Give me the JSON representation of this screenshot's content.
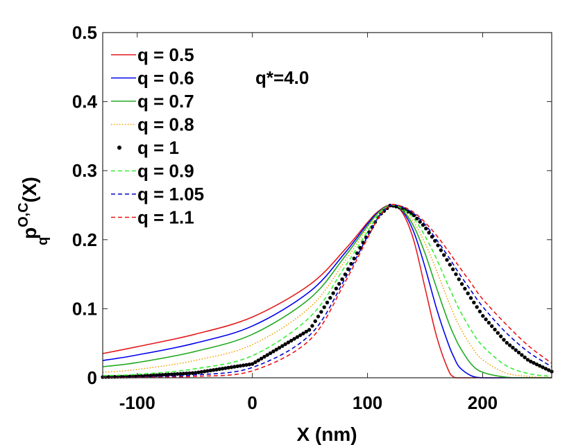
{
  "chart_data": {
    "type": "line",
    "title": "",
    "xlabel": "X (nm)",
    "ylabel": {
      "base": "p",
      "sub": "q",
      "sup": "O,C",
      "arg": "(X)"
    },
    "xlim": [
      -130,
      260
    ],
    "ylim": [
      0,
      0.5
    ],
    "xticks": [
      -100,
      0,
      100,
      200
    ],
    "xtick_labels": [
      "-100",
      "0",
      "100",
      "200"
    ],
    "yticks": [
      0,
      0.1,
      0.2,
      0.3,
      0.4,
      0.5
    ],
    "ytick_labels": [
      "0",
      "0.1",
      "0.2",
      "0.3",
      "0.4",
      "0.5"
    ],
    "grid": false,
    "legend_position": "top-left",
    "annotation": "q*=4.0",
    "x": [
      -130,
      -100,
      -50,
      0,
      50,
      80,
      100,
      110,
      120,
      130,
      140,
      150,
      160,
      170,
      175,
      180,
      190,
      200,
      220,
      240,
      260
    ],
    "series": [
      {
        "name": "q = 0.5",
        "color": "#e41a1c",
        "style": "solid",
        "values": [
          0.035,
          0.045,
          0.063,
          0.088,
          0.135,
          0.185,
          0.225,
          0.242,
          0.25,
          0.24,
          0.2,
          0.13,
          0.06,
          0.012,
          0.001,
          0.0,
          0.0,
          0.0,
          0.0,
          0.0,
          0.0
        ]
      },
      {
        "name": "q = 0.6",
        "color": "#0000ee",
        "style": "solid",
        "values": [
          0.025,
          0.033,
          0.05,
          0.075,
          0.125,
          0.18,
          0.223,
          0.241,
          0.25,
          0.242,
          0.212,
          0.16,
          0.1,
          0.05,
          0.03,
          0.015,
          0.003,
          0.0,
          0.0,
          0.0,
          0.0
        ]
      },
      {
        "name": "q = 0.7",
        "color": "#22aa22",
        "style": "solid",
        "values": [
          0.016,
          0.022,
          0.038,
          0.063,
          0.115,
          0.175,
          0.22,
          0.24,
          0.25,
          0.243,
          0.22,
          0.18,
          0.13,
          0.082,
          0.062,
          0.045,
          0.02,
          0.008,
          0.001,
          0.0,
          0.0
        ]
      },
      {
        "name": "q = 0.8",
        "color": "#f0a000",
        "style": "dotted",
        "values": [
          0.008,
          0.012,
          0.025,
          0.048,
          0.102,
          0.168,
          0.217,
          0.239,
          0.25,
          0.244,
          0.226,
          0.195,
          0.155,
          0.112,
          0.092,
          0.074,
          0.046,
          0.026,
          0.007,
          0.002,
          0.0
        ]
      },
      {
        "name": "q = 1",
        "color": "#000000",
        "style": "markers",
        "values": [
          0.001,
          0.002,
          0.007,
          0.02,
          0.07,
          0.148,
          0.207,
          0.235,
          0.25,
          0.246,
          0.236,
          0.218,
          0.195,
          0.168,
          0.155,
          0.141,
          0.115,
          0.09,
          0.052,
          0.025,
          0.009
        ]
      },
      {
        "name": "q = 0.9",
        "color": "#33ee33",
        "style": "dashed",
        "values": [
          0.003,
          0.005,
          0.013,
          0.032,
          0.088,
          0.16,
          0.212,
          0.237,
          0.25,
          0.245,
          0.231,
          0.205,
          0.172,
          0.134,
          0.116,
          0.098,
          0.069,
          0.046,
          0.018,
          0.006,
          0.002
        ]
      },
      {
        "name": "q = 1.05",
        "color": "#0000cc",
        "style": "dashed",
        "values": [
          0.0005,
          0.001,
          0.004,
          0.015,
          0.062,
          0.142,
          0.205,
          0.234,
          0.25,
          0.247,
          0.238,
          0.222,
          0.2,
          0.176,
          0.163,
          0.15,
          0.126,
          0.103,
          0.066,
          0.037,
          0.016
        ]
      },
      {
        "name": "q = 1.1",
        "color": "#ee1111",
        "style": "dashed",
        "values": [
          0.0002,
          0.0005,
          0.002,
          0.01,
          0.055,
          0.137,
          0.202,
          0.233,
          0.25,
          0.248,
          0.24,
          0.225,
          0.206,
          0.184,
          0.172,
          0.16,
          0.137,
          0.114,
          0.078,
          0.046,
          0.021
        ]
      }
    ]
  }
}
